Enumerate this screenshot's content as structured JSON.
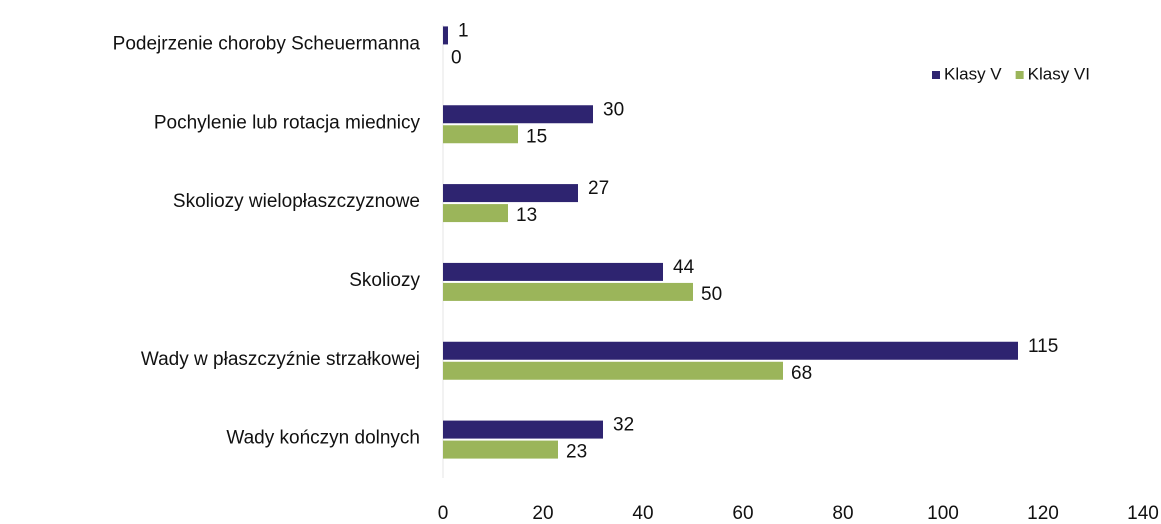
{
  "chart_data": {
    "type": "hbar",
    "categories": [
      "Podejrzenie choroby Scheuermanna",
      "Pochylenie lub rotacja miednicy",
      "Skoliozy wielopłaszczyznowe",
      "Skoliozy",
      "Wady w płaszczyźnie strzałkowej",
      "Wady kończyn dolnych"
    ],
    "series": [
      {
        "name": "Klasy V",
        "color": "#2e2470",
        "values": [
          1,
          30,
          27,
          44,
          115,
          32
        ]
      },
      {
        "name": "Klasy VI",
        "color": "#9bb55a",
        "values": [
          0,
          15,
          13,
          50,
          68,
          23
        ]
      }
    ],
    "xlim": [
      0,
      140
    ],
    "xticks": [
      0,
      20,
      40,
      60,
      80,
      100,
      120,
      140
    ],
    "grid": false,
    "legend": "top-right"
  }
}
